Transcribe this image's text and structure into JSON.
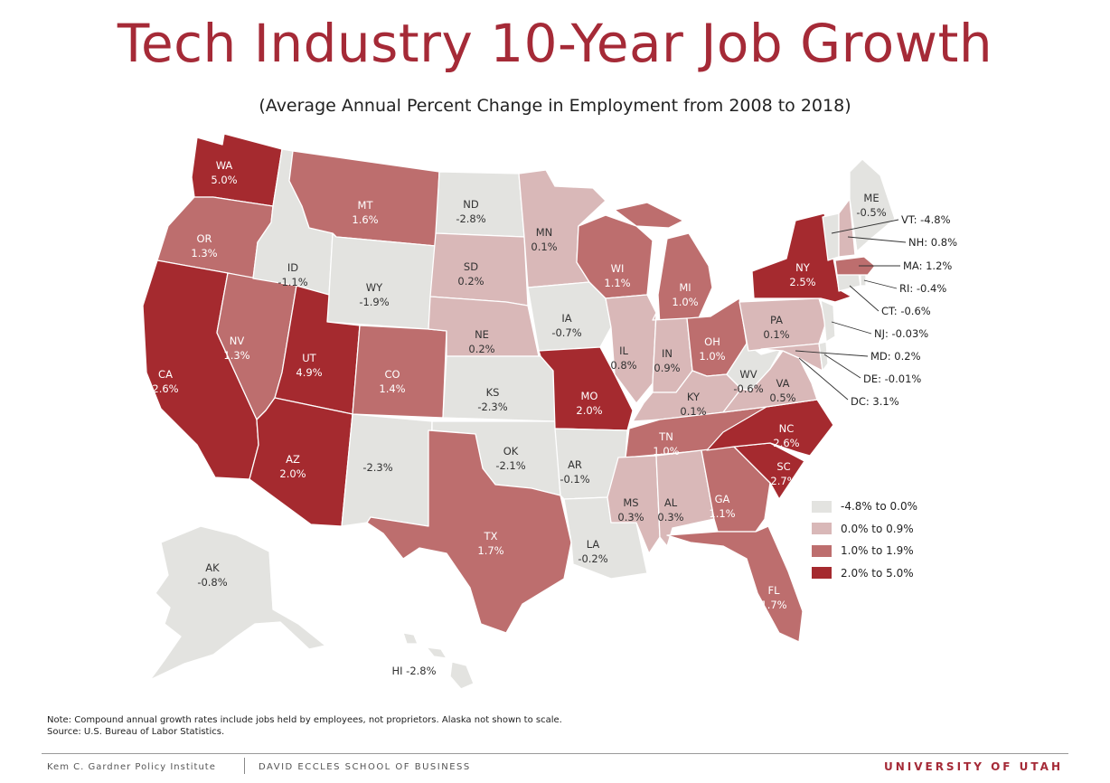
{
  "title": "Tech Industry 10-Year Job Growth",
  "subtitle": "(Average Annual Percent Change in Employment from 2008 to 2018)",
  "colors": {
    "c1": "#e3e3e0",
    "c2": "#d9b8b8",
    "c3": "#bd6e6e",
    "c4": "#a52a2f",
    "border": "#ffffff",
    "title": "#a52a37"
  },
  "legend": [
    {
      "label": "-4.8% to 0.0%",
      "color": "#e3e3e0"
    },
    {
      "label": "0.0% to 0.9%",
      "color": "#d9b8b8"
    },
    {
      "label": "1.0% to 1.9%",
      "color": "#bd6e6e"
    },
    {
      "label": "2.0% to 5.0%",
      "color": "#a52a2f"
    }
  ],
  "states": {
    "WA": {
      "abbr": "WA",
      "value": "5.0%"
    },
    "OR": {
      "abbr": "OR",
      "value": "1.3%"
    },
    "CA": {
      "abbr": "CA",
      "value": "2.6%"
    },
    "NV": {
      "abbr": "NV",
      "value": "1.3%"
    },
    "ID": {
      "abbr": "ID",
      "value": "-1.1%"
    },
    "MT": {
      "abbr": "MT",
      "value": "1.6%"
    },
    "WY": {
      "abbr": "WY",
      "value": "-1.9%"
    },
    "UT": {
      "abbr": "UT",
      "value": "4.9%"
    },
    "CO": {
      "abbr": "CO",
      "value": "1.4%"
    },
    "AZ": {
      "abbr": "AZ",
      "value": "2.0%"
    },
    "NM": {
      "abbr": "",
      "value": "-2.3%"
    },
    "ND": {
      "abbr": "ND",
      "value": "-2.8%"
    },
    "SD": {
      "abbr": "SD",
      "value": "0.2%"
    },
    "NE": {
      "abbr": "NE",
      "value": "0.2%"
    },
    "KS": {
      "abbr": "KS",
      "value": "-2.3%"
    },
    "OK": {
      "abbr": "OK",
      "value": "-2.1%"
    },
    "TX": {
      "abbr": "TX",
      "value": "1.7%"
    },
    "MN": {
      "abbr": "MN",
      "value": "0.1%"
    },
    "IA": {
      "abbr": "IA",
      "value": "-0.7%"
    },
    "MO": {
      "abbr": "MO",
      "value": "2.0%"
    },
    "AR": {
      "abbr": "AR",
      "value": "-0.1%"
    },
    "LA": {
      "abbr": "LA",
      "value": "-0.2%"
    },
    "WI": {
      "abbr": "WI",
      "value": "1.1%"
    },
    "IL": {
      "abbr": "IL",
      "value": "0.8%"
    },
    "MI": {
      "abbr": "MI",
      "value": "1.0%"
    },
    "IN": {
      "abbr": "IN",
      "value": "0.9%"
    },
    "OH": {
      "abbr": "OH",
      "value": "1.0%"
    },
    "KY": {
      "abbr": "KY",
      "value": "0.1%"
    },
    "TN": {
      "abbr": "TN",
      "value": "1.0%"
    },
    "MS": {
      "abbr": "MS",
      "value": "0.3%"
    },
    "AL": {
      "abbr": "AL",
      "value": "0.3%"
    },
    "GA": {
      "abbr": "GA",
      "value": "1.1%"
    },
    "FL": {
      "abbr": "FL",
      "value": "1.7%"
    },
    "SC": {
      "abbr": "SC",
      "value": "2.7%"
    },
    "NC": {
      "abbr": "NC",
      "value": "2.6%"
    },
    "VA": {
      "abbr": "VA",
      "value": "0.5%"
    },
    "WV": {
      "abbr": "WV",
      "value": "-0.6%"
    },
    "PA": {
      "abbr": "PA",
      "value": "0.1%"
    },
    "NY": {
      "abbr": "NY",
      "value": "2.5%"
    },
    "ME": {
      "abbr": "ME",
      "value": "-0.5%"
    },
    "AK": {
      "abbr": "AK",
      "value": "-0.8%"
    },
    "HI": {
      "abbr": "HI",
      "value": "-2.8%"
    },
    "VT": {
      "abbr": "VT",
      "value": "-4.8%"
    },
    "NH": {
      "abbr": "NH",
      "value": "0.8%"
    },
    "MA": {
      "abbr": "MA",
      "value": "1.2%"
    },
    "RI": {
      "abbr": "RI",
      "value": "-0.4%"
    },
    "CT": {
      "abbr": "CT",
      "value": "-0.6%"
    },
    "NJ": {
      "abbr": "NJ",
      "value": "-0.03%"
    },
    "MD": {
      "abbr": "MD",
      "value": "0.2%"
    },
    "DE": {
      "abbr": "DE",
      "value": "-0.01%"
    },
    "DC": {
      "abbr": "DC",
      "value": "3.1%"
    }
  },
  "callouts": {
    "VT": "VT: -4.8%",
    "NH": "NH: 0.8%",
    "MA": "MA: 1.2%",
    "RI": "RI: -0.4%",
    "CT": "CT: -0.6%",
    "NJ": "NJ: -0.03%",
    "MD": "MD: 0.2%",
    "DE": "DE: -0.01%",
    "DC": "DC: 3.1%"
  },
  "note": {
    "line1": "Note: Compound annual growth rates include jobs held by employees, not proprietors. Alaska not shown to scale.",
    "line2": "Source: U.S. Bureau of Labor Statistics."
  },
  "footer": {
    "left": "Kem C. Gardner Policy Institute",
    "middle": "DAVID ECCLES SCHOOL OF BUSINESS",
    "right": "UNIVERSITY OF UTAH"
  }
}
